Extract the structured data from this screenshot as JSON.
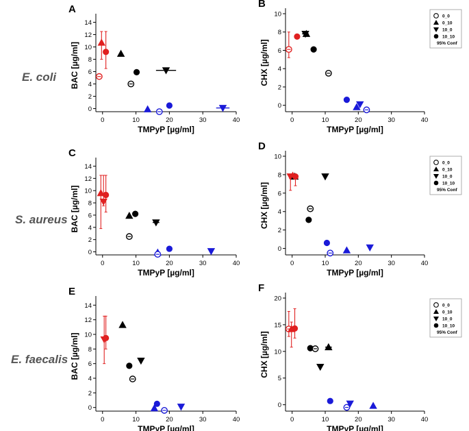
{
  "figure": {
    "rows": [
      "E. coli",
      "S. aureus",
      "E. faecalis"
    ],
    "colors": {
      "red": "#e02020",
      "black": "#000000",
      "blue": "#1a1ad8",
      "gray_fill": "#bbbbbb"
    },
    "legend": {
      "items": [
        {
          "label": "0_0",
          "marker": "circle-open"
        },
        {
          "label": "0_10",
          "marker": "triangle-up"
        },
        {
          "label": "10_0",
          "marker": "triangle-down"
        },
        {
          "label": "10_10",
          "marker": "circle-filled"
        }
      ],
      "footer": "95% Conf"
    }
  },
  "chart_data": [
    {
      "id": "A",
      "type": "scatter",
      "organism": "E. coli",
      "xlabel": "TMPyP [µg/ml]",
      "ylabel": "BAC [µg/ml]",
      "xlim": [
        -2,
        40
      ],
      "ylim": [
        -0.5,
        14.5
      ],
      "xticks": [
        0,
        10,
        20,
        30,
        40
      ],
      "yticks": [
        0,
        2,
        4,
        6,
        8,
        10,
        12,
        14
      ],
      "legend": false,
      "points": [
        {
          "x": -1,
          "y": 5.2,
          "marker": "circle-open",
          "color": "red"
        },
        {
          "x": -0.3,
          "y": 10.7,
          "marker": "triangle-up",
          "color": "red",
          "err_y": [
            8.0,
            12.5
          ]
        },
        {
          "x": 1,
          "y": 9.2,
          "marker": "circle-filled",
          "color": "red",
          "err_y": [
            6.5,
            12.5
          ]
        },
        {
          "x": 5.5,
          "y": 8.9,
          "marker": "triangle-up",
          "color": "black"
        },
        {
          "x": 8.5,
          "y": 4.0,
          "marker": "circle-open",
          "color": "black"
        },
        {
          "x": 10.2,
          "y": 5.9,
          "marker": "circle-filled",
          "color": "black"
        },
        {
          "x": 19,
          "y": 6.2,
          "marker": "triangle-down",
          "color": "black",
          "err_x": [
            16,
            22
          ]
        },
        {
          "x": 13.5,
          "y": -0.1,
          "marker": "triangle-up",
          "color": "blue"
        },
        {
          "x": 17,
          "y": -0.5,
          "marker": "circle-open",
          "color": "blue"
        },
        {
          "x": 20,
          "y": 0.5,
          "marker": "circle-filled",
          "color": "blue"
        },
        {
          "x": 36,
          "y": 0.1,
          "marker": "triangle-down",
          "color": "blue",
          "err_x": [
            34,
            38
          ]
        }
      ]
    },
    {
      "id": "B",
      "type": "scatter",
      "organism": "E. coli",
      "xlabel": "TMPyP [µg/ml]",
      "ylabel": "CHX [µg/ml]",
      "xlim": [
        -2,
        40
      ],
      "ylim": [
        -0.7,
        10
      ],
      "xticks": [
        0,
        10,
        20,
        30,
        40
      ],
      "yticks": [
        0,
        2,
        4,
        6,
        8,
        10
      ],
      "legend": true,
      "points": [
        {
          "x": -1,
          "y": 6.1,
          "marker": "circle-open",
          "color": "red",
          "err_y": [
            5.2,
            8.0
          ]
        },
        {
          "x": 1.5,
          "y": 7.5,
          "marker": "circle-filled",
          "color": "red"
        },
        {
          "x": 4,
          "y": 7.8,
          "marker": "triangle-down",
          "color": "black",
          "err_x": [
            3,
            5
          ]
        },
        {
          "x": 4.3,
          "y": 7.8,
          "marker": "triangle-up",
          "color": "black"
        },
        {
          "x": 6.5,
          "y": 6.1,
          "marker": "circle-filled",
          "color": "black"
        },
        {
          "x": 11,
          "y": 3.5,
          "marker": "circle-open",
          "color": "black"
        },
        {
          "x": 16.5,
          "y": 0.6,
          "marker": "circle-filled",
          "color": "blue"
        },
        {
          "x": 19.5,
          "y": -0.2,
          "marker": "triangle-up",
          "color": "blue"
        },
        {
          "x": 20.5,
          "y": 0.1,
          "marker": "triangle-down",
          "color": "blue"
        },
        {
          "x": 22.5,
          "y": -0.5,
          "marker": "circle-open",
          "color": "blue"
        }
      ]
    },
    {
      "id": "C",
      "type": "scatter",
      "organism": "S. aureus",
      "xlabel": "TMPyP [µg/ml]",
      "ylabel": "BAC [µg/ml]",
      "xlim": [
        -2,
        40
      ],
      "ylim": [
        -0.5,
        14.5
      ],
      "xticks": [
        0,
        10,
        20,
        30,
        40
      ],
      "yticks": [
        0,
        2,
        4,
        6,
        8,
        10,
        12,
        14
      ],
      "legend": false,
      "points": [
        {
          "x": -0.5,
          "y": 9.6,
          "marker": "triangle-up",
          "color": "red",
          "err_y": [
            3.8,
            12.5
          ]
        },
        {
          "x": 0.3,
          "y": 8.2,
          "marker": "triangle-down",
          "color": "red",
          "err_y": [
            7.5,
            12.5
          ]
        },
        {
          "x": 1,
          "y": 9.3,
          "marker": "circle-filled",
          "color": "red",
          "err_y": [
            6.5,
            12.5
          ]
        },
        {
          "x": 8,
          "y": 5.9,
          "marker": "triangle-up",
          "color": "black"
        },
        {
          "x": 8,
          "y": 2.5,
          "marker": "circle-open",
          "color": "black"
        },
        {
          "x": 9.8,
          "y": 6.2,
          "marker": "circle-filled",
          "color": "black"
        },
        {
          "x": 16,
          "y": 4.8,
          "marker": "triangle-down",
          "color": "black",
          "err_x": [
            15,
            17
          ]
        },
        {
          "x": 16.5,
          "y": -0.1,
          "marker": "triangle-up",
          "color": "blue"
        },
        {
          "x": 16.5,
          "y": -0.4,
          "marker": "circle-open",
          "color": "blue"
        },
        {
          "x": 20,
          "y": 0.5,
          "marker": "circle-filled",
          "color": "blue"
        },
        {
          "x": 32.5,
          "y": 0.1,
          "marker": "triangle-down",
          "color": "blue"
        }
      ]
    },
    {
      "id": "D",
      "type": "scatter",
      "organism": "S. aureus",
      "xlabel": "TMPyP [µg/ml]",
      "ylabel": "CHX [µg/ml]",
      "xlim": [
        -2,
        40
      ],
      "ylim": [
        -0.7,
        10
      ],
      "xticks": [
        0,
        10,
        20,
        30,
        40
      ],
      "yticks": [
        0,
        2,
        4,
        6,
        8,
        10
      ],
      "legend": true,
      "points": [
        {
          "x": -0.5,
          "y": 7.8,
          "marker": "triangle-down",
          "color": "red",
          "err_y": [
            6.3,
            8.0
          ]
        },
        {
          "x": 0.2,
          "y": 7.9,
          "marker": "triangle-up",
          "color": "red"
        },
        {
          "x": 0.8,
          "y": 7.8,
          "marker": "triangle-up",
          "color": "black"
        },
        {
          "x": 1,
          "y": 7.8,
          "marker": "circle-filled",
          "color": "red",
          "err_y": [
            6.8,
            8.0
          ]
        },
        {
          "x": 5.5,
          "y": 4.3,
          "marker": "circle-open",
          "color": "black"
        },
        {
          "x": 5,
          "y": 3.1,
          "marker": "circle-filled",
          "color": "black"
        },
        {
          "x": 10,
          "y": 7.8,
          "marker": "triangle-down",
          "color": "black"
        },
        {
          "x": 10.5,
          "y": 0.6,
          "marker": "circle-filled",
          "color": "blue"
        },
        {
          "x": 11.5,
          "y": -0.5,
          "marker": "circle-open",
          "color": "blue"
        },
        {
          "x": 16.5,
          "y": -0.2,
          "marker": "triangle-up",
          "color": "blue"
        },
        {
          "x": 23.5,
          "y": 0.1,
          "marker": "triangle-down",
          "color": "blue"
        }
      ]
    },
    {
      "id": "E",
      "type": "scatter",
      "organism": "E. faecalis",
      "xlabel": "TMPyP [µg/ml]",
      "ylabel": "BAC [µg/ml]",
      "xlim": [
        -2,
        40
      ],
      "ylim": [
        -0.5,
        14.5
      ],
      "xticks": [
        0,
        10,
        20,
        30,
        40
      ],
      "yticks": [
        0,
        2,
        4,
        6,
        8,
        10,
        12,
        14
      ],
      "legend": false,
      "points": [
        {
          "x": 0.5,
          "y": 9.3,
          "marker": "triangle-down",
          "color": "red",
          "err_y": [
            6.0,
            12.5
          ]
        },
        {
          "x": 1,
          "y": 9.5,
          "marker": "circle-filled",
          "color": "red",
          "err_y": [
            8.0,
            12.5
          ]
        },
        {
          "x": 6,
          "y": 11.3,
          "marker": "triangle-up",
          "color": "black"
        },
        {
          "x": 8,
          "y": 5.7,
          "marker": "circle-filled",
          "color": "black"
        },
        {
          "x": 9,
          "y": 3.9,
          "marker": "circle-open",
          "color": "black"
        },
        {
          "x": 11.5,
          "y": 6.4,
          "marker": "triangle-down",
          "color": "black"
        },
        {
          "x": 15.5,
          "y": -0.1,
          "marker": "triangle-up",
          "color": "blue"
        },
        {
          "x": 16.3,
          "y": 0.5,
          "marker": "circle-filled",
          "color": "blue"
        },
        {
          "x": 18.5,
          "y": -0.4,
          "marker": "circle-open",
          "color": "blue"
        },
        {
          "x": 23.5,
          "y": 0.1,
          "marker": "triangle-down",
          "color": "blue"
        }
      ]
    },
    {
      "id": "F",
      "type": "scatter",
      "organism": "E. faecalis",
      "xlabel": "TMPyP [µg/ml]",
      "ylabel": "CHX [µg/ml]",
      "xlim": [
        -2,
        40
      ],
      "ylim": [
        -1.2,
        20
      ],
      "xticks": [
        0,
        10,
        20,
        30,
        40
      ],
      "yticks": [
        0,
        5,
        10,
        15,
        20
      ],
      "legend": true,
      "points": [
        {
          "x": -1,
          "y": 14.2,
          "marker": "circle-open",
          "color": "red",
          "err_y": [
            12.8,
            17.5
          ]
        },
        {
          "x": -0.2,
          "y": 14.2,
          "marker": "triangle-up",
          "color": "red",
          "err_y": [
            10.8,
            15.5
          ]
        },
        {
          "x": 0.8,
          "y": 14.3,
          "marker": "circle-filled",
          "color": "red",
          "err_y": [
            12.5,
            18.0
          ]
        },
        {
          "x": 5.5,
          "y": 10.6,
          "marker": "circle-filled",
          "color": "black"
        },
        {
          "x": 7,
          "y": 10.5,
          "marker": "circle-open",
          "color": "black"
        },
        {
          "x": 8.5,
          "y": 7.1,
          "marker": "triangle-down",
          "color": "black"
        },
        {
          "x": 11,
          "y": 10.8,
          "marker": "triangle-up",
          "color": "black",
          "err_x": [
            10,
            12
          ]
        },
        {
          "x": 11.5,
          "y": 0.7,
          "marker": "circle-filled",
          "color": "blue"
        },
        {
          "x": 16.5,
          "y": -0.5,
          "marker": "circle-open",
          "color": "blue"
        },
        {
          "x": 17.5,
          "y": 0.2,
          "marker": "triangle-down",
          "color": "blue"
        },
        {
          "x": 24.5,
          "y": -0.2,
          "marker": "triangle-up",
          "color": "blue"
        }
      ]
    }
  ]
}
